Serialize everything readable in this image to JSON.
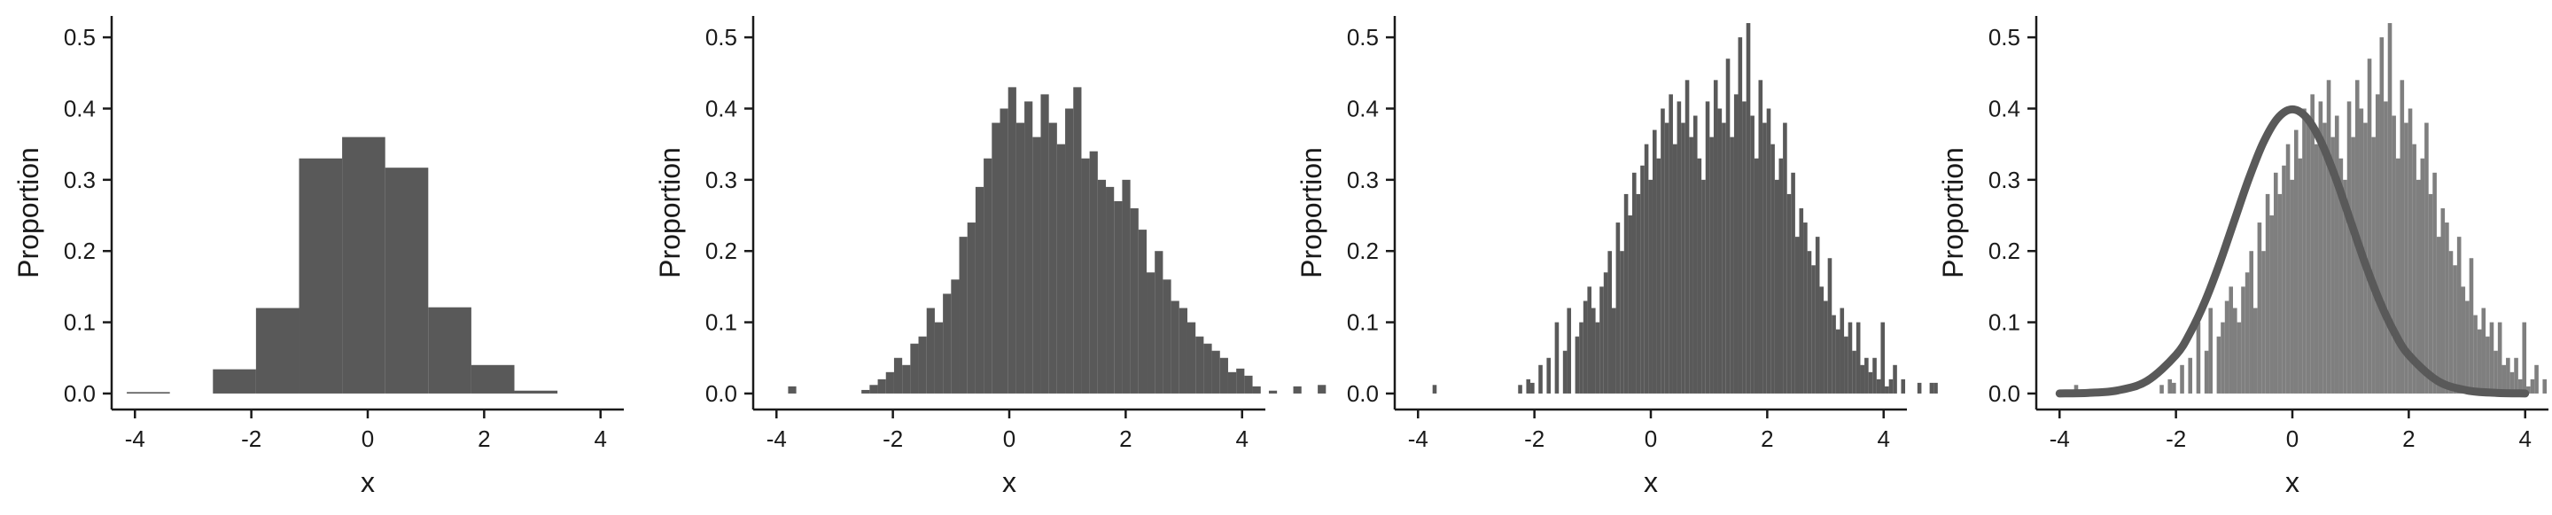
{
  "colors": {
    "bar_dark": "#595959",
    "bar_light": "#7f7f7f",
    "density_curve": "#595959",
    "axis": "#1a1a1a"
  },
  "chart_data": [
    {
      "type": "bar",
      "xlabel": "x",
      "ylabel": "Proportion",
      "xlim": [
        -4.4,
        4.4
      ],
      "ylim": [
        -0.015,
        0.53
      ],
      "xticks": [
        -4,
        -2,
        0,
        2,
        4
      ],
      "yticks": [
        0.0,
        0.1,
        0.2,
        0.3,
        0.4,
        0.5
      ],
      "grid": false,
      "bar_color": "#595959",
      "bin_edges": [
        -4.14,
        -3.4,
        -2.66,
        -1.92,
        -1.18,
        -0.44,
        0.3,
        1.04,
        1.78,
        2.52,
        3.26
      ],
      "values": [
        0.002,
        0.0,
        0.034,
        0.12,
        0.33,
        0.36,
        0.317,
        0.121,
        0.04,
        0.004
      ]
    },
    {
      "type": "bar",
      "xlabel": "x",
      "ylabel": "Proportion",
      "xlim": [
        -4.4,
        4.4
      ],
      "ylim": [
        -0.015,
        0.53
      ],
      "xticks": [
        -4,
        -2,
        0,
        2,
        4
      ],
      "yticks": [
        0.0,
        0.1,
        0.2,
        0.3,
        0.4,
        0.5
      ],
      "grid": false,
      "bar_color": "#595959",
      "bin_start": -3.8,
      "bin_width": 0.14,
      "values": [
        0.01,
        0.0,
        0.0,
        0.0,
        0.0,
        0.0,
        0.0,
        0.0,
        0.0,
        0.005,
        0.012,
        0.02,
        0.03,
        0.05,
        0.04,
        0.07,
        0.08,
        0.12,
        0.1,
        0.14,
        0.16,
        0.22,
        0.24,
        0.29,
        0.33,
        0.38,
        0.4,
        0.43,
        0.38,
        0.41,
        0.36,
        0.42,
        0.38,
        0.35,
        0.4,
        0.43,
        0.33,
        0.34,
        0.3,
        0.29,
        0.27,
        0.3,
        0.26,
        0.23,
        0.17,
        0.2,
        0.16,
        0.13,
        0.12,
        0.1,
        0.08,
        0.07,
        0.06,
        0.05,
        0.03,
        0.035,
        0.025,
        0.01,
        0.0,
        0.004,
        0.0,
        0.0,
        0.01,
        0.0,
        0.0,
        0.012,
        0.0
      ]
    },
    {
      "type": "bar",
      "xlabel": "x",
      "ylabel": "Proportion",
      "xlim": [
        -4.4,
        4.4
      ],
      "ylim": [
        -0.015,
        0.53
      ],
      "xticks": [
        -4,
        -2,
        0,
        2,
        4
      ],
      "yticks": [
        0.0,
        0.1,
        0.2,
        0.3,
        0.4,
        0.5
      ],
      "grid": false,
      "bar_color": "#595959",
      "bin_start": -3.75,
      "bin_width": 0.07,
      "values": [
        0.012,
        0.0,
        0.0,
        0.0,
        0.0,
        0.0,
        0.0,
        0.0,
        0.0,
        0.0,
        0.0,
        0.0,
        0.0,
        0.0,
        0.0,
        0.0,
        0.0,
        0.0,
        0.0,
        0.0,
        0.0,
        0.012,
        0.0,
        0.02,
        0.015,
        0.0,
        0.04,
        0.0,
        0.05,
        0.0,
        0.1,
        0.0,
        0.06,
        0.12,
        0.0,
        0.08,
        0.1,
        0.13,
        0.15,
        0.12,
        0.1,
        0.15,
        0.17,
        0.2,
        0.12,
        0.24,
        0.2,
        0.28,
        0.25,
        0.31,
        0.28,
        0.32,
        0.35,
        0.3,
        0.37,
        0.33,
        0.4,
        0.38,
        0.42,
        0.35,
        0.41,
        0.38,
        0.44,
        0.36,
        0.39,
        0.33,
        0.3,
        0.41,
        0.36,
        0.44,
        0.4,
        0.38,
        0.47,
        0.36,
        0.42,
        0.5,
        0.41,
        0.52,
        0.39,
        0.33,
        0.44,
        0.38,
        0.4,
        0.35,
        0.3,
        0.33,
        0.38,
        0.28,
        0.31,
        0.22,
        0.26,
        0.24,
        0.2,
        0.18,
        0.22,
        0.15,
        0.13,
        0.19,
        0.11,
        0.09,
        0.12,
        0.08,
        0.1,
        0.06,
        0.1,
        0.04,
        0.05,
        0.03,
        0.05,
        0.02,
        0.1,
        0.01,
        0.02,
        0.04,
        0.0,
        0.02,
        0.0,
        0.0,
        0.0,
        0.015,
        0.0,
        0.0,
        0.015,
        0.015
      ]
    },
    {
      "type": "bar",
      "xlabel": "x",
      "ylabel": "Proportion",
      "xlim": [
        -4.4,
        4.4
      ],
      "ylim": [
        -0.015,
        0.53
      ],
      "xticks": [
        -4,
        -2,
        0,
        2,
        4
      ],
      "yticks": [
        0.0,
        0.1,
        0.2,
        0.3,
        0.4,
        0.5
      ],
      "grid": false,
      "bar_color": "#7f7f7f",
      "bin_start": -3.75,
      "bin_width": 0.07,
      "values": [
        0.012,
        0.0,
        0.0,
        0.0,
        0.0,
        0.0,
        0.0,
        0.0,
        0.0,
        0.0,
        0.0,
        0.0,
        0.0,
        0.0,
        0.0,
        0.0,
        0.0,
        0.0,
        0.0,
        0.0,
        0.0,
        0.012,
        0.0,
        0.02,
        0.015,
        0.0,
        0.04,
        0.0,
        0.05,
        0.0,
        0.1,
        0.0,
        0.06,
        0.12,
        0.0,
        0.08,
        0.1,
        0.13,
        0.15,
        0.12,
        0.1,
        0.15,
        0.17,
        0.2,
        0.12,
        0.24,
        0.2,
        0.28,
        0.25,
        0.31,
        0.28,
        0.32,
        0.35,
        0.3,
        0.37,
        0.33,
        0.4,
        0.38,
        0.42,
        0.35,
        0.41,
        0.38,
        0.44,
        0.36,
        0.39,
        0.33,
        0.3,
        0.41,
        0.36,
        0.44,
        0.4,
        0.38,
        0.47,
        0.36,
        0.42,
        0.5,
        0.41,
        0.52,
        0.39,
        0.33,
        0.44,
        0.38,
        0.4,
        0.35,
        0.3,
        0.33,
        0.38,
        0.28,
        0.31,
        0.22,
        0.26,
        0.24,
        0.2,
        0.18,
        0.22,
        0.15,
        0.13,
        0.19,
        0.11,
        0.09,
        0.12,
        0.08,
        0.1,
        0.06,
        0.1,
        0.04,
        0.05,
        0.03,
        0.05,
        0.02,
        0.1,
        0.01,
        0.02,
        0.04,
        0.0,
        0.02,
        0.0,
        0.0,
        0.0,
        0.015,
        0.0,
        0.0,
        0.015,
        0.015
      ],
      "density_curve": {
        "type": "line",
        "color": "#595959",
        "x": [
          -4.0,
          -3.5,
          -3.0,
          -2.5,
          -2.0,
          -1.75,
          -1.5,
          -1.25,
          -1.0,
          -0.75,
          -0.5,
          -0.25,
          0.0,
          0.25,
          0.5,
          0.75,
          1.0,
          1.25,
          1.5,
          1.75,
          2.0,
          2.5,
          3.0,
          3.5,
          4.0
        ],
        "y": [
          0.0001,
          0.0009,
          0.0044,
          0.0175,
          0.054,
          0.0863,
          0.1295,
          0.1826,
          0.242,
          0.3011,
          0.3521,
          0.3867,
          0.3989,
          0.3867,
          0.3521,
          0.3011,
          0.242,
          0.1826,
          0.1295,
          0.0863,
          0.054,
          0.0175,
          0.0044,
          0.0009,
          0.0001
        ]
      }
    }
  ]
}
